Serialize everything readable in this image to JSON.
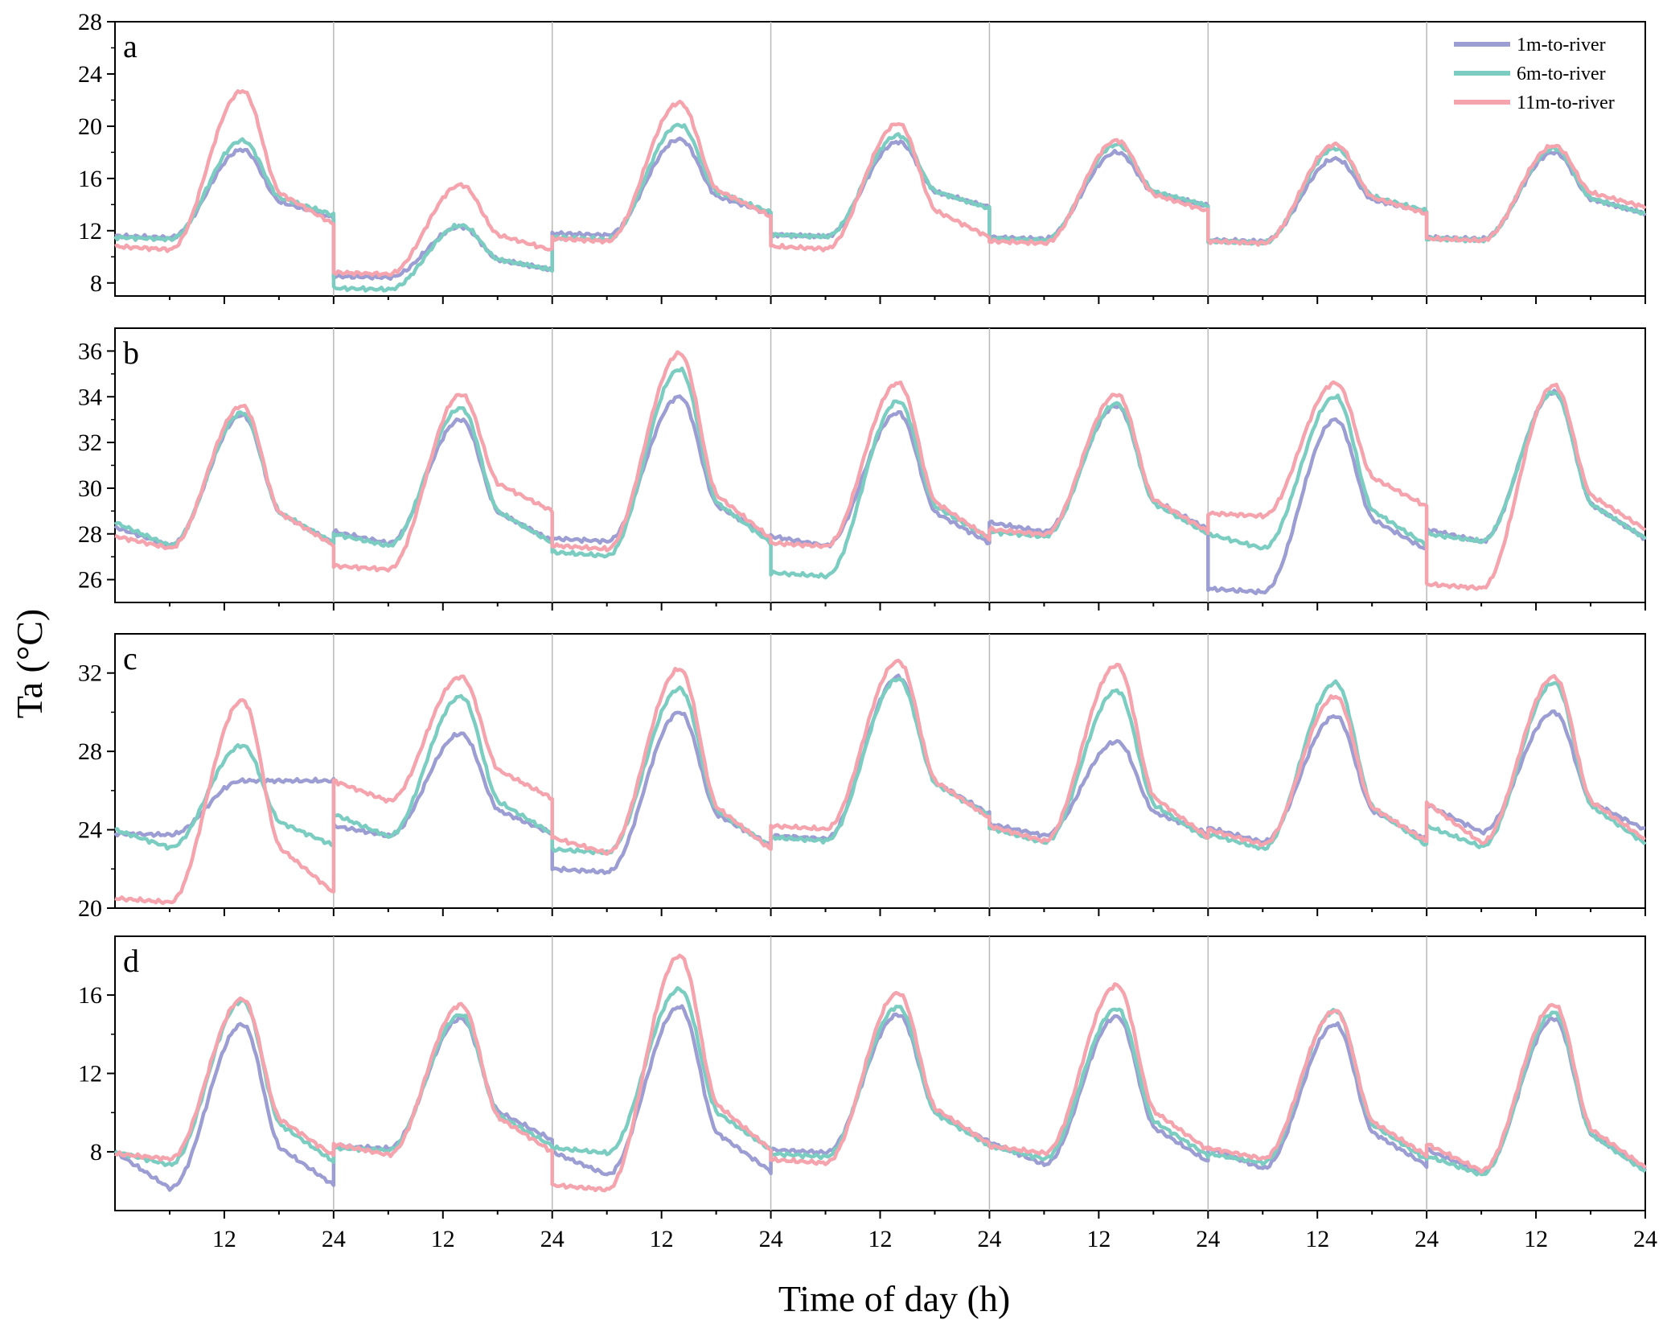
{
  "chart_data": {
    "type": "line",
    "ylabel": "Ta (°C)",
    "xlabel": "Time of day (h)",
    "days": 7,
    "x_tick_labels": [
      "12",
      "24",
      "12",
      "24",
      "12",
      "24",
      "12",
      "24",
      "12",
      "24",
      "12",
      "24",
      "12",
      "24"
    ],
    "legend": {
      "position": "top-right",
      "entries": [
        "1m-to-river",
        "6m-to-river",
        "11m-to-river"
      ]
    },
    "series_colors": {
      "1m-to-river": "#9b9dd3",
      "6m-to-river": "#7ccdc1",
      "11m-to-river": "#f5a3ad"
    },
    "panels": [
      {
        "label": "a",
        "ylim": [
          7,
          28
        ],
        "yticks": [
          8,
          12,
          16,
          20,
          24,
          28
        ],
        "day_profiles": {
          "1m-to-river": [
            [
              11.6,
              18.2,
              13.0
            ],
            [
              8.5,
              12.3,
              9.0
            ],
            [
              11.8,
              19.0,
              13.3
            ],
            [
              11.7,
              18.8,
              13.8
            ],
            [
              11.5,
              18.0,
              13.9
            ],
            [
              11.3,
              17.5,
              13.4
            ],
            [
              11.5,
              18.0,
              13.3
            ]
          ],
          "6m-to-river": [
            [
              11.5,
              18.9,
              13.2
            ],
            [
              7.6,
              12.4,
              9.0
            ],
            [
              11.5,
              20.1,
              13.4
            ],
            [
              11.7,
              19.3,
              13.7
            ],
            [
              11.4,
              18.6,
              13.9
            ],
            [
              11.2,
              18.3,
              13.5
            ],
            [
              11.4,
              18.3,
              13.3
            ]
          ],
          "11m-to-river": [
            [
              10.8,
              22.7,
              12.5
            ],
            [
              8.8,
              15.5,
              10.5
            ],
            [
              11.4,
              21.8,
              13.1
            ],
            [
              10.8,
              20.2,
              11.5
            ],
            [
              11.2,
              18.9,
              13.5
            ],
            [
              11.2,
              18.6,
              13.3
            ],
            [
              11.4,
              18.5,
              13.8
            ]
          ]
        }
      },
      {
        "label": "b",
        "ylim": [
          25,
          37
        ],
        "yticks": [
          26,
          28,
          30,
          32,
          34,
          36
        ],
        "day_profiles": {
          "1m-to-river": [
            [
              28.3,
              33.2,
              27.6
            ],
            [
              28.1,
              33.0,
              27.7
            ],
            [
              27.8,
              34.0,
              27.8
            ],
            [
              27.9,
              33.3,
              27.6
            ],
            [
              28.5,
              33.6,
              28.2
            ],
            [
              25.6,
              33.0,
              27.3
            ],
            [
              28.2,
              34.2,
              27.8
            ]
          ],
          "6m-to-river": [
            [
              28.5,
              33.3,
              27.6
            ],
            [
              28.0,
              33.5,
              27.6
            ],
            [
              27.2,
              35.2,
              27.6
            ],
            [
              26.3,
              33.8,
              27.8
            ],
            [
              28.1,
              33.7,
              28.0
            ],
            [
              28.0,
              34.0,
              27.5
            ],
            [
              28.0,
              34.2,
              27.8
            ]
          ],
          "11m-to-river": [
            [
              27.9,
              33.6,
              27.5
            ],
            [
              26.6,
              34.1,
              29.0
            ],
            [
              27.5,
              35.9,
              27.8
            ],
            [
              27.6,
              34.6,
              27.8
            ],
            [
              28.2,
              34.1,
              28.1
            ],
            [
              28.9,
              34.6,
              29.2
            ],
            [
              25.8,
              34.5,
              28.2
            ]
          ]
        }
      },
      {
        "label": "c",
        "ylim": [
          20,
          34
        ],
        "yticks": [
          20,
          24,
          28,
          32
        ],
        "day_profiles": {
          "1m-to-river": [
            [
              23.8,
              26.5,
              26.5
            ],
            [
              24.2,
              28.9,
              23.8
            ],
            [
              22.0,
              30.0,
              23.2
            ],
            [
              23.7,
              31.8,
              24.8
            ],
            [
              24.3,
              28.5,
              23.8
            ],
            [
              24.1,
              29.8,
              23.5
            ],
            [
              25.3,
              30.0,
              24.0
            ]
          ],
          "6m-to-river": [
            [
              24.0,
              28.3,
              23.2
            ],
            [
              24.8,
              30.8,
              23.8
            ],
            [
              23.0,
              31.2,
              23.1
            ],
            [
              23.6,
              31.7,
              24.7
            ],
            [
              24.1,
              31.1,
              23.5
            ],
            [
              23.8,
              31.5,
              23.2
            ],
            [
              24.2,
              31.5,
              23.3
            ]
          ],
          "11m-to-river": [
            [
              20.5,
              30.6,
              20.8
            ],
            [
              26.5,
              31.8,
              25.6
            ],
            [
              23.6,
              32.2,
              23.0
            ],
            [
              24.2,
              32.6,
              24.6
            ],
            [
              24.2,
              32.4,
              23.6
            ],
            [
              24.0,
              30.8,
              23.4
            ],
            [
              25.4,
              31.8,
              23.5
            ]
          ]
        }
      },
      {
        "label": "d",
        "ylim": [
          5,
          19
        ],
        "yticks": [
          8,
          12,
          16
        ],
        "day_profiles": {
          "1m-to-river": [
            [
              8.0,
              14.5,
              6.3
            ],
            [
              8.3,
              14.8,
              8.6
            ],
            [
              8.0,
              15.4,
              7.0
            ],
            [
              8.1,
              15.0,
              8.5
            ],
            [
              8.5,
              14.9,
              7.5
            ],
            [
              8.2,
              14.5,
              7.3
            ],
            [
              8.1,
              14.8,
              7.1
            ]
          ],
          "6m-to-river": [
            [
              8.0,
              15.7,
              7.5
            ],
            [
              8.2,
              15.0,
              8.3
            ],
            [
              8.2,
              16.3,
              8.1
            ],
            [
              7.9,
              15.4,
              8.3
            ],
            [
              8.3,
              15.3,
              7.8
            ],
            [
              7.9,
              15.2,
              7.6
            ],
            [
              7.8,
              15.1,
              7.0
            ]
          ],
          "11m-to-river": [
            [
              7.9,
              15.8,
              7.8
            ],
            [
              8.4,
              15.5,
              8.0
            ],
            [
              6.3,
              18.0,
              8.1
            ],
            [
              7.6,
              16.1,
              8.4
            ],
            [
              8.3,
              16.5,
              8.1
            ],
            [
              8.2,
              15.2,
              7.8
            ],
            [
              8.4,
              15.5,
              7.2
            ]
          ]
        }
      }
    ]
  }
}
